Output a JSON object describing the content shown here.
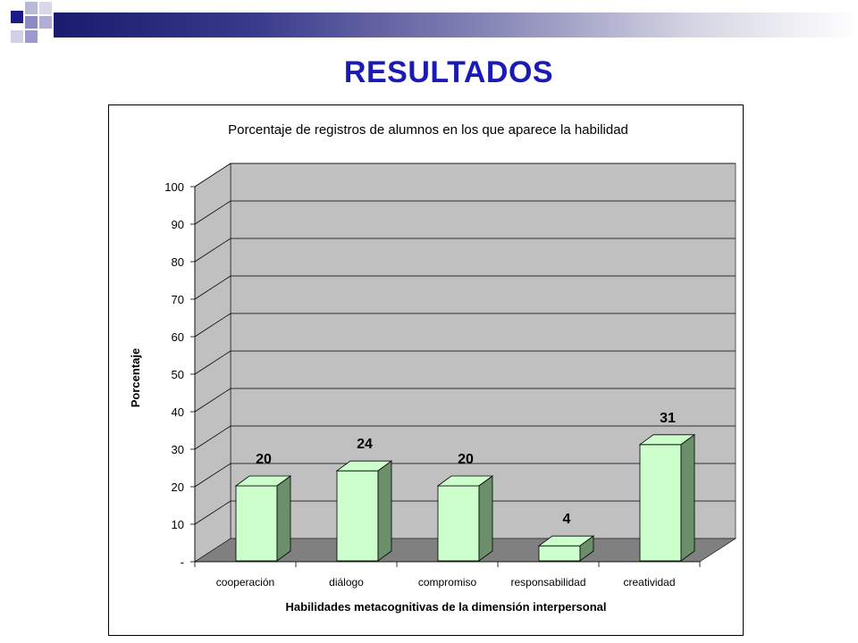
{
  "slide": {
    "title": "RESULTADOS",
    "accent_color": "#1a1ab4",
    "header_bar_color": "#1a1a6e"
  },
  "chart_data": {
    "type": "bar",
    "title": "Porcentaje de registros de alumnos en los que aparece la habilidad",
    "xlabel": "Habilidades metacognitivas de la dimensión interpersonal",
    "ylabel": "Porcentaje",
    "categories": [
      "cooperación",
      "diálogo",
      "compromiso",
      "responsabilidad",
      "creatividad"
    ],
    "values": [
      20,
      24,
      20,
      4,
      31
    ],
    "data_labels": [
      "20",
      "24",
      "20",
      "4",
      "31"
    ],
    "ylim": [
      0,
      100
    ],
    "y_ticks": [
      "-",
      "10",
      "20",
      "30",
      "40",
      "50",
      "60",
      "70",
      "80",
      "90",
      "100"
    ],
    "grid": true,
    "style": "3d",
    "bar_color": "#ccffcc",
    "bar_side_color": "#6b8e6b",
    "wall_color": "#c0c0c0",
    "floor_color": "#808080"
  }
}
